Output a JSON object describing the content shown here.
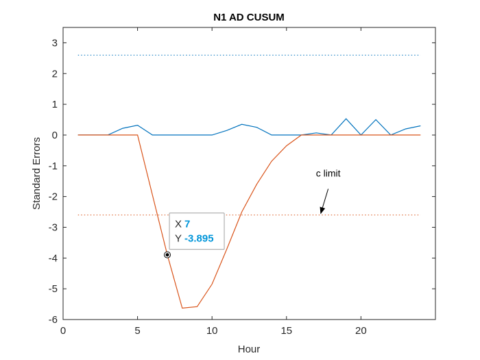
{
  "chart_data": {
    "type": "line",
    "title": "N1 AD CUSUM",
    "xlabel": "Hour",
    "ylabel": "Standard Errors",
    "xlim": [
      0,
      25
    ],
    "ylim": [
      -6,
      3.5
    ],
    "xticks": [
      0,
      5,
      10,
      15,
      20
    ],
    "yticks": [
      3,
      2,
      1,
      0,
      -1,
      -2,
      -3,
      -4,
      -5,
      -6
    ],
    "grid": false,
    "legend": "none",
    "series": [
      {
        "color": "#0072bd",
        "x": [
          1,
          2,
          3,
          4,
          5,
          6,
          7,
          8,
          9,
          10,
          11,
          12,
          13,
          14,
          15,
          16,
          17,
          18,
          19,
          20,
          21,
          22,
          23,
          24
        ],
        "values": [
          0,
          0,
          0,
          0.22,
          0.32,
          0,
          0,
          0,
          0,
          0,
          0.15,
          0.35,
          0.25,
          0,
          0,
          0,
          0.07,
          0,
          0.53,
          0,
          0.5,
          0,
          0.2,
          0.3
        ]
      },
      {
        "color": "#d95319",
        "x": [
          1,
          2,
          3,
          4,
          5,
          6,
          7,
          8,
          9,
          10,
          11,
          12,
          13,
          14,
          15,
          16,
          17,
          18,
          19,
          20,
          21,
          22,
          23,
          24
        ],
        "values": [
          0,
          0,
          0,
          0,
          0,
          -1.95,
          -3.895,
          -5.63,
          -5.58,
          -4.85,
          -3.7,
          -2.5,
          -1.6,
          -0.85,
          -0.35,
          0,
          0,
          0,
          0,
          0,
          0,
          0,
          0,
          0
        ]
      }
    ],
    "limits": [
      {
        "value": 2.6,
        "color": "#0072bd",
        "x_range": [
          1,
          24
        ],
        "style": "dotted"
      },
      {
        "value": -2.6,
        "color": "#d95319",
        "x_range": [
          1,
          24
        ],
        "style": "dotted"
      }
    ],
    "annotations": [
      {
        "text": "c limit",
        "text_at": [
          17.8,
          -1.35
        ],
        "arrow_from": [
          17.8,
          -1.75
        ],
        "arrow_to": [
          17.3,
          -2.55
        ]
      }
    ],
    "datatip": {
      "x_label": "X",
      "x_value": "7",
      "y_label": "Y",
      "y_value": "-3.895",
      "point": [
        7,
        -3.895
      ]
    }
  }
}
